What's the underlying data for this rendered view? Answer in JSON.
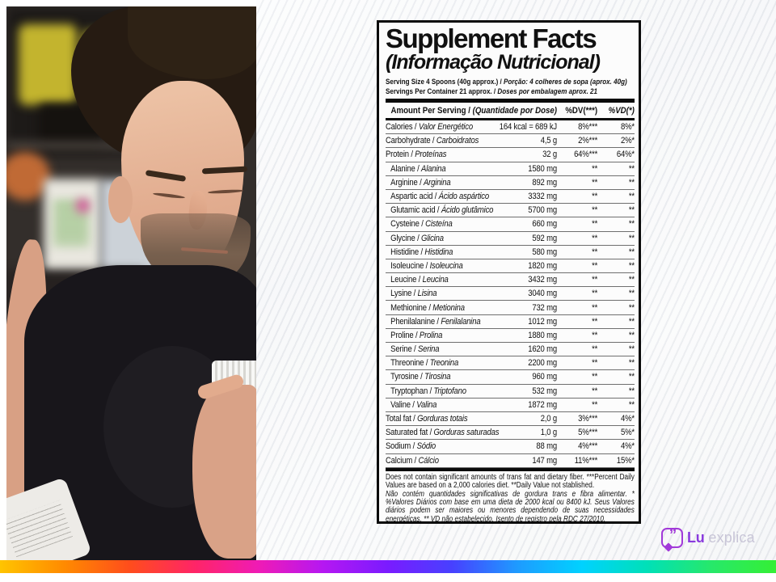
{
  "label": {
    "title": "Supplement Facts",
    "subtitle": "(Informação Nutricional)",
    "serving": [
      {
        "en": "Serving Size 4 Spoons (40g approx.) / ",
        "pt": "Porção: 4 colheres de sopa (aprox. 40g)"
      },
      {
        "en": "Servings Per Container 21 approx. / ",
        "pt": "Doses por embalagem aprox. 21"
      }
    ],
    "table": {
      "header": {
        "en": "Amount Per Serving / ",
        "pt": "(Quantidade por Dose)",
        "dv": "%DV(***)",
        "vd": "%VD(*)"
      },
      "rows": [
        {
          "en": "Calories",
          "pt": "Valor Energético",
          "amount": "164 kcal = 689 kJ",
          "dv": "8%***",
          "vd": "8%*",
          "indent": false
        },
        {
          "en": "Carbohydrate",
          "pt": "Carboidratos",
          "amount": "4,5 g",
          "dv": "2%***",
          "vd": "2%*",
          "indent": false
        },
        {
          "en": "Protein",
          "pt": "Proteínas",
          "amount": "32 g",
          "dv": "64%***",
          "vd": "64%*",
          "indent": false
        },
        {
          "en": "Alanine",
          "pt": "Alanina",
          "amount": "1580 mg",
          "dv": "**",
          "vd": "**",
          "indent": true
        },
        {
          "en": "Arginine",
          "pt": "Arginina",
          "amount": "892 mg",
          "dv": "**",
          "vd": "**",
          "indent": true
        },
        {
          "en": "Aspartic acid",
          "pt": "Ácido aspártico",
          "amount": "3332 mg",
          "dv": "**",
          "vd": "**",
          "indent": true
        },
        {
          "en": "Glutamic acid",
          "pt": "Ácido glutâmico",
          "amount": "5700 mg",
          "dv": "**",
          "vd": "**",
          "indent": true
        },
        {
          "en": "Cysteine",
          "pt": "Cisteína",
          "amount": "660 mg",
          "dv": "**",
          "vd": "**",
          "indent": true
        },
        {
          "en": "Glycine",
          "pt": "Glicina",
          "amount": "592 mg",
          "dv": "**",
          "vd": "**",
          "indent": true
        },
        {
          "en": "Histidine",
          "pt": "Histidina",
          "amount": "580 mg",
          "dv": "**",
          "vd": "**",
          "indent": true
        },
        {
          "en": "Isoleucine",
          "pt": "Isoleucina",
          "amount": "1820 mg",
          "dv": "**",
          "vd": "**",
          "indent": true
        },
        {
          "en": "Leucine",
          "pt": "Leucina",
          "amount": "3432 mg",
          "dv": "**",
          "vd": "**",
          "indent": true
        },
        {
          "en": "Lysine",
          "pt": "Lisina",
          "amount": "3040 mg",
          "dv": "**",
          "vd": "**",
          "indent": true
        },
        {
          "en": "Methionine",
          "pt": "Metionina",
          "amount": "732 mg",
          "dv": "**",
          "vd": "**",
          "indent": true
        },
        {
          "en": "Phenilalanine",
          "pt": "Fenilalanina",
          "amount": "1012 mg",
          "dv": "**",
          "vd": "**",
          "indent": true
        },
        {
          "en": "Proline",
          "pt": "Prolina",
          "amount": "1880 mg",
          "dv": "**",
          "vd": "**",
          "indent": true
        },
        {
          "en": "Serine",
          "pt": "Serina",
          "amount": "1620 mg",
          "dv": "**",
          "vd": "**",
          "indent": true
        },
        {
          "en": "Threonine",
          "pt": "Treonina",
          "amount": "2200 mg",
          "dv": "**",
          "vd": "**",
          "indent": true
        },
        {
          "en": "Tyrosine",
          "pt": "Tirosina",
          "amount": "960 mg",
          "dv": "**",
          "vd": "**",
          "indent": true
        },
        {
          "en": "Tryptophan",
          "pt": "Triptofano",
          "amount": "532 mg",
          "dv": "**",
          "vd": "**",
          "indent": true
        },
        {
          "en": "Valine",
          "pt": "Valina",
          "amount": "1872 mg",
          "dv": "**",
          "vd": "**",
          "indent": true
        },
        {
          "en": "Total fat",
          "pt": "Gorduras totais",
          "amount": "2,0 g",
          "dv": "3%***",
          "vd": "4%*",
          "indent": false
        },
        {
          "en": "Saturated fat",
          "pt": "Gorduras saturadas",
          "amount": "1,0 g",
          "dv": "5%***",
          "vd": "5%*",
          "indent": false
        },
        {
          "en": "Sodium",
          "pt": "Sódio",
          "amount": "88 mg",
          "dv": "4%***",
          "vd": "4%*",
          "indent": false
        },
        {
          "en": "Calcium",
          "pt": "Cálcio",
          "amount": "147 mg",
          "dv": "11%***",
          "vd": "15%*",
          "indent": false
        }
      ]
    },
    "footnote_en": "Does not contain significant amounts of trans fat and dietary fiber. ***Percent Daily Values are based on a 2,000 calories diet. **Daily Value not stablished.",
    "footnote_pt": "Não contém quantidades significativas de gordura trans e fibra alimentar. * %Valores Diários com base em uma dieta de 2000 kcal ou 8400 kJ. Seus Valores diários podem ser maiores ou menores dependendo de suas necessidades energéticas. ** VD não estabelecido. Isento de registro pela RDC 27/2010."
  },
  "logo": {
    "quote_glyph": "”",
    "brand_bold": "Lu",
    "brand_light": "explica",
    "purple": "#a23ad9",
    "light_text": "#c8c5d7"
  },
  "rainbow_colors": [
    "#ffc400",
    "#ff8a00",
    "#ff4d1c",
    "#ff2566",
    "#ef1bb5",
    "#b517f2",
    "#7a1bff",
    "#4741ff",
    "#1e9bff",
    "#00d2ff",
    "#00e0b8",
    "#27e86a",
    "#35ef35"
  ]
}
